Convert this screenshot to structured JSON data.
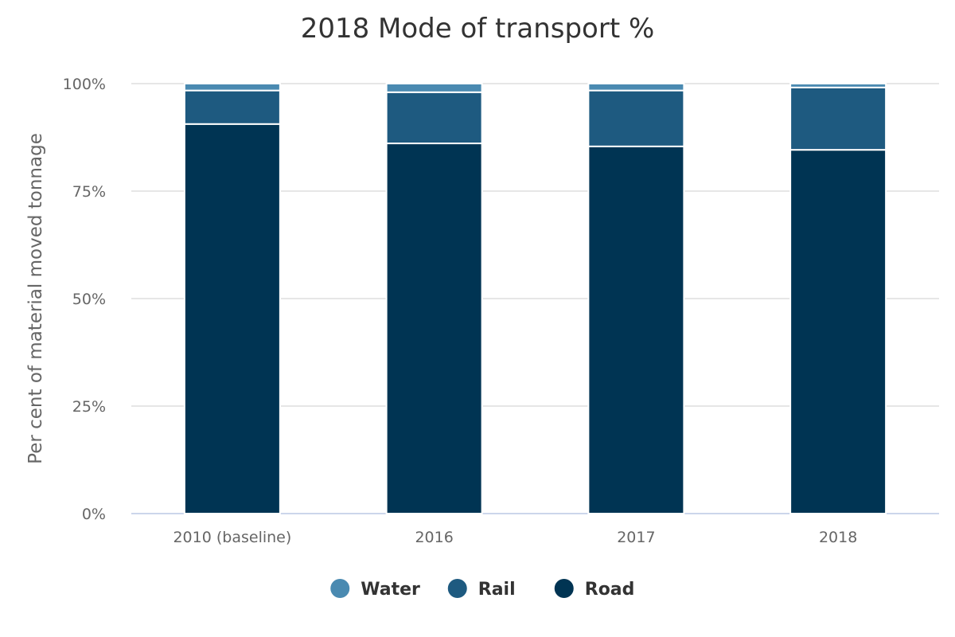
{
  "chart_data": {
    "type": "bar",
    "stacked": true,
    "stacking": "percent",
    "title": "2018 Mode of transport %",
    "xlabel": "",
    "ylabel": "Per cent of material moved tonnage",
    "categories": [
      "2010 (baseline)",
      "2016",
      "2017",
      "2018"
    ],
    "y_ticks": [
      "0%",
      "25%",
      "50%",
      "75%",
      "100%"
    ],
    "ylim": [
      0,
      100
    ],
    "grid": true,
    "legend_position": "bottom-center",
    "series": [
      {
        "name": "Water",
        "values": [
          1.6,
          2.0,
          1.6,
          0.9
        ],
        "color": "#4a8ab1"
      },
      {
        "name": "Rail",
        "values": [
          7.8,
          11.9,
          13.0,
          14.5
        ],
        "color": "#1e5a80"
      },
      {
        "name": "Road",
        "values": [
          90.6,
          86.1,
          85.4,
          84.6
        ],
        "color": "#003453"
      }
    ]
  }
}
